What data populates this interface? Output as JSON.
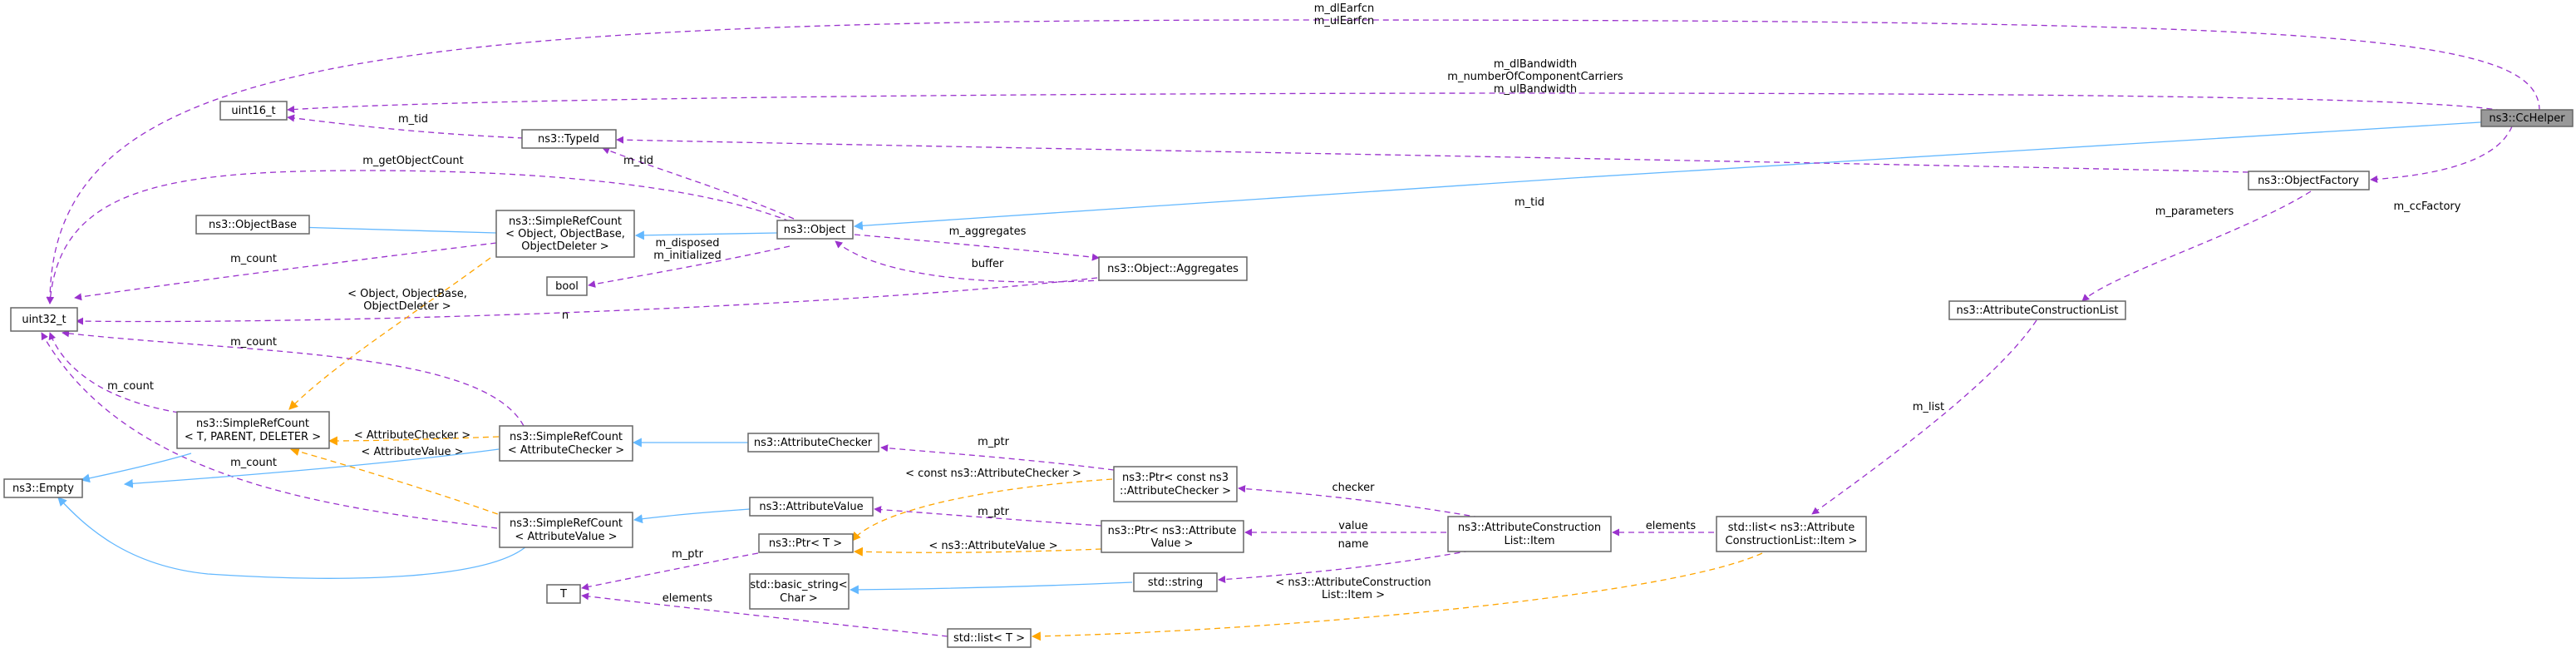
{
  "diagram": {
    "colors": {
      "usage": "#9a32cd",
      "inheritance": "#63b8ff",
      "template": "#ffa500",
      "highlight_fill": "#999999",
      "border": "#666666"
    },
    "nodes": {
      "cchelper": "ns3::CcHelper",
      "uint16": "uint16_t",
      "typeid": "ns3::TypeId",
      "objectbase": "ns3::ObjectBase",
      "srcount_object": [
        "ns3::SimpleRefCount",
        "< Object, ObjectBase,",
        "ObjectDeleter >"
      ],
      "object": "ns3::Object",
      "objectfactory": "ns3::ObjectFactory",
      "aggregates": "ns3::Object::Aggregates",
      "bool": "bool",
      "uint32": "uint32_t",
      "attr_constr_list": "ns3::AttributeConstructionList",
      "srcount_generic": [
        "ns3::SimpleRefCount",
        "< T, PARENT, DELETER >"
      ],
      "srcount_checker": [
        "ns3::SimpleRefCount",
        "< AttributeChecker >"
      ],
      "attr_checker": "ns3::AttributeChecker",
      "empty": "ns3::Empty",
      "ptr_checker": [
        "ns3::Ptr< const ns3",
        "::AttributeChecker >"
      ],
      "attr_value": "ns3::AttributeValue",
      "srcount_value": [
        "ns3::SimpleRefCount",
        "< AttributeValue >"
      ],
      "ptr_value": [
        "ns3::Ptr< ns3::Attribute",
        "Value >"
      ],
      "attr_constr_item": [
        "ns3::AttributeConstruction",
        "List::Item"
      ],
      "std_list_item": [
        "std::list< ns3::Attribute",
        "ConstructionList::Item >"
      ],
      "ptr_t": "ns3::Ptr< T >",
      "std_string": "std::string",
      "basic_string": [
        "std::basic_string<",
        "Char >"
      ],
      "t": "T",
      "std_list_t": "std::list< T >"
    },
    "edge_labels": {
      "earfcn": [
        "m_dlEarfcn",
        "m_ulEarfcn"
      ],
      "bandwidth": [
        "m_dlBandwidth",
        "m_numberOfComponentCarriers",
        "m_ulBandwidth"
      ],
      "typeid_tid": "m_tid",
      "object_tid": "m_tid",
      "factory_tid": "m_tid",
      "cc_factory": "m_ccFactory",
      "get_object_count": "m_getObjectCount",
      "aggregates": "m_aggregates",
      "buffer": "buffer",
      "disposed": [
        "m_disposed",
        "m_initialized"
      ],
      "srcount_count": "m_count",
      "n": "n",
      "parameters": "m_parameters",
      "tmpl_object": [
        "< Object, ObjectBase,",
        "ObjectDeleter >"
      ],
      "checker_count": "m_count",
      "generic_count": "m_count",
      "value_count": "m_count",
      "tmpl_checker": "< AttributeChecker >",
      "tmpl_value": "< AttributeValue >",
      "m_list": "m_list",
      "checker_ptr": "m_ptr",
      "tmpl_const_checker": "< const ns3::AttributeChecker >",
      "checker": "checker",
      "value_ptr": "m_ptr",
      "value": "value",
      "elements_item": "elements",
      "tmpl_attr_value": "< ns3::AttributeValue >",
      "name": "name",
      "t_ptr": "m_ptr",
      "tmpl_item": [
        "< ns3::AttributeConstruction",
        "List::Item >"
      ],
      "elements_t": "elements"
    }
  }
}
